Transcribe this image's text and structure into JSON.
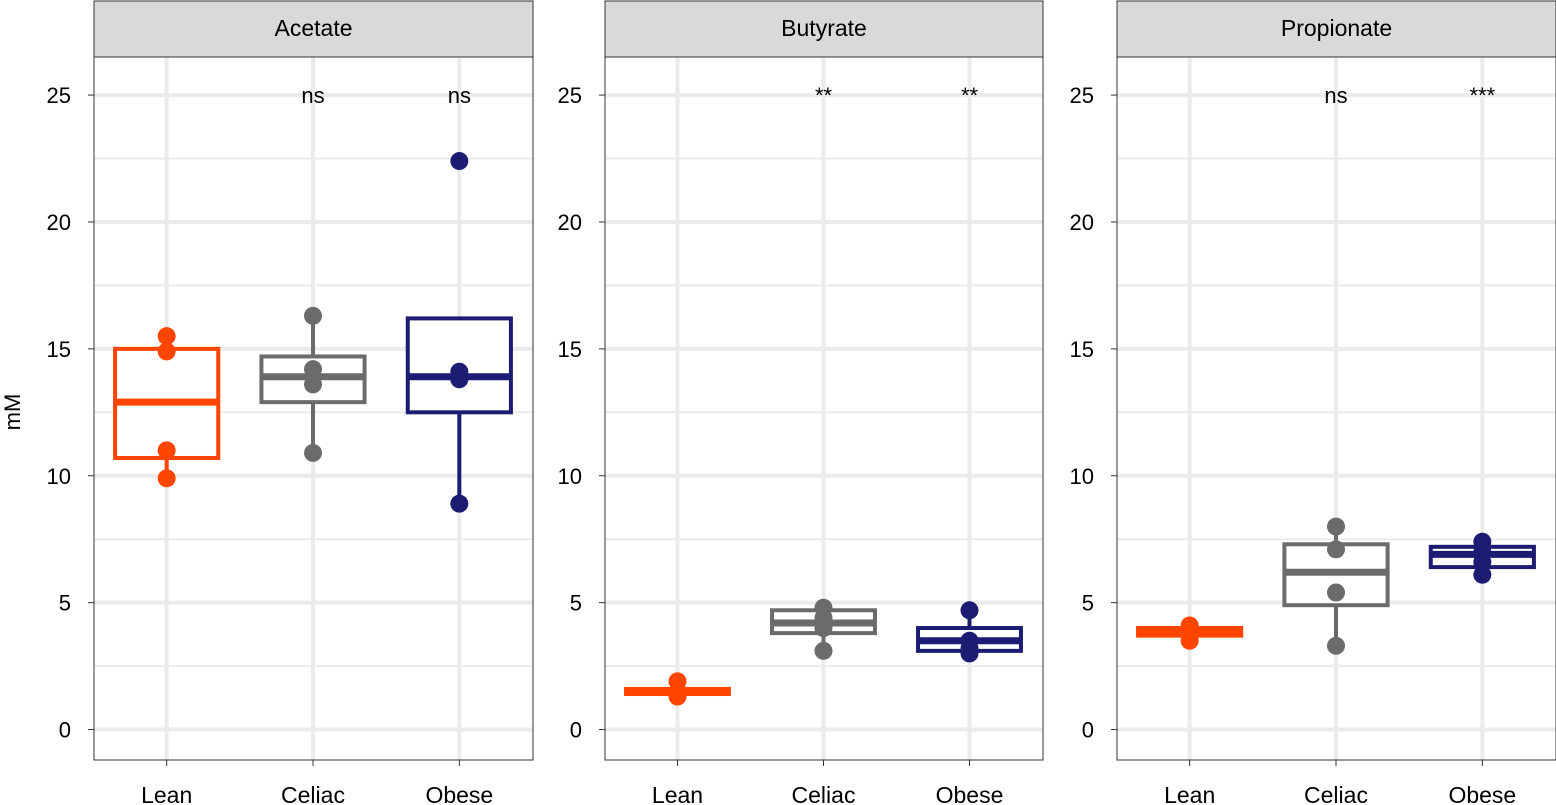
{
  "chart_data": {
    "type": "box",
    "ylabel": "mM",
    "ylim": [
      -1.2,
      26.5
    ],
    "yticks": [
      0,
      5,
      10,
      15,
      20,
      25
    ],
    "categories": [
      "Lean",
      "Celiac",
      "Obese"
    ],
    "colors": {
      "Lean": "#ff4500",
      "Celiac": "#6b6b6b",
      "Obese": "#1c1c73"
    },
    "grid": true,
    "panels": [
      {
        "title": "Acetate",
        "annotations": [
          "",
          "ns",
          "ns"
        ],
        "groups": [
          {
            "name": "Lean",
            "min": 9.9,
            "q1": 10.7,
            "median": 12.9,
            "q3": 15.0,
            "max": 15.5,
            "points": [
              15.5,
              14.9,
              11.0,
              9.9
            ]
          },
          {
            "name": "Celiac",
            "min": 10.9,
            "q1": 12.9,
            "median": 13.9,
            "q3": 14.7,
            "max": 16.3,
            "points": [
              16.3,
              14.2,
              13.6,
              10.9
            ]
          },
          {
            "name": "Obese",
            "min": 8.9,
            "q1": 12.5,
            "median": 13.9,
            "q3": 16.2,
            "max": 16.2,
            "points": [
              22.4,
              14.1,
              13.8,
              8.9
            ]
          }
        ]
      },
      {
        "title": "Butyrate",
        "annotations": [
          "",
          "**",
          "**"
        ],
        "groups": [
          {
            "name": "Lean",
            "min": 1.3,
            "q1": 1.4,
            "median": 1.5,
            "q3": 1.6,
            "max": 1.9,
            "points": [
              1.9,
              1.5,
              1.4,
              1.3
            ]
          },
          {
            "name": "Celiac",
            "min": 3.1,
            "q1": 3.8,
            "median": 4.2,
            "q3": 4.7,
            "max": 4.8,
            "points": [
              4.8,
              4.4,
              4.0,
              3.1
            ]
          },
          {
            "name": "Obese",
            "min": 3.0,
            "q1": 3.1,
            "median": 3.5,
            "q3": 4.0,
            "max": 4.7,
            "points": [
              4.7,
              3.5,
              3.2,
              3.0
            ]
          }
        ]
      },
      {
        "title": "Propionate",
        "annotations": [
          "",
          "ns",
          "***"
        ],
        "groups": [
          {
            "name": "Lean",
            "min": 3.5,
            "q1": 3.7,
            "median": 3.8,
            "q3": 4.0,
            "max": 4.1,
            "points": [
              4.1,
              3.9,
              3.7,
              3.5
            ]
          },
          {
            "name": "Celiac",
            "min": 3.3,
            "q1": 4.9,
            "median": 6.2,
            "q3": 7.3,
            "max": 8.0,
            "points": [
              8.0,
              7.1,
              5.4,
              3.3
            ]
          },
          {
            "name": "Obese",
            "min": 6.1,
            "q1": 6.4,
            "median": 6.9,
            "q3": 7.2,
            "max": 7.4,
            "points": [
              7.4,
              7.0,
              6.6,
              6.1
            ]
          }
        ]
      }
    ]
  }
}
